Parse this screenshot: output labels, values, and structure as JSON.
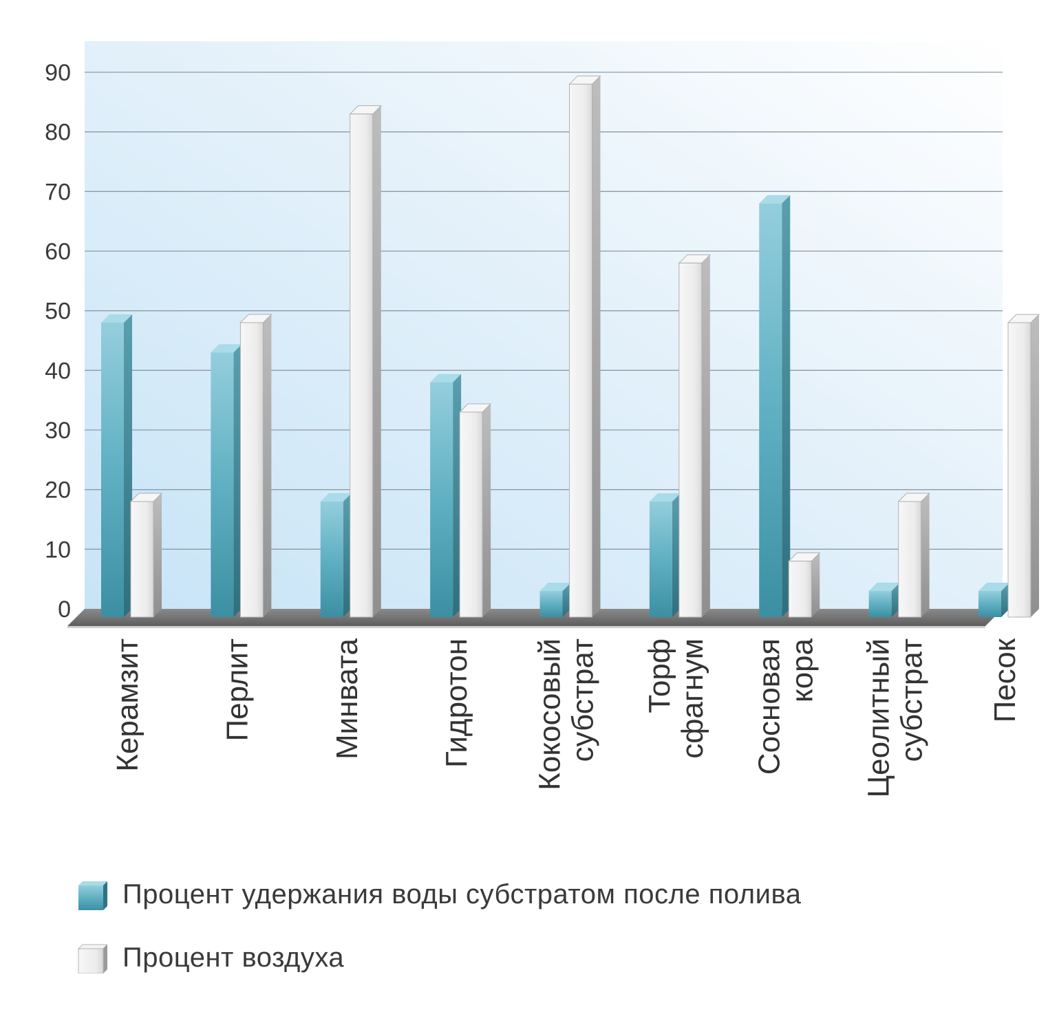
{
  "chart_data": {
    "type": "bar",
    "title": "",
    "xlabel": "",
    "ylabel": "",
    "ylim": [
      0,
      90
    ],
    "yticks": [
      0,
      10,
      20,
      30,
      40,
      50,
      60,
      70,
      80,
      90
    ],
    "grid": true,
    "legend_position": "bottom",
    "categories": [
      [
        "Керамзит"
      ],
      [
        "Перлит"
      ],
      [
        "Минвата"
      ],
      [
        "Гидротон"
      ],
      [
        "Кокосовый",
        "субстрат"
      ],
      [
        "Торф",
        "сфагнум"
      ],
      [
        "Сосновая",
        "кора"
      ],
      [
        "Цеолитный",
        "субстрат"
      ],
      [
        "Песок"
      ]
    ],
    "series": [
      {
        "name": "Процент удержания воды субстратом после полива",
        "color": "#4fa3b6",
        "values": [
          48,
          43,
          18,
          38,
          3,
          18,
          68,
          3,
          3
        ]
      },
      {
        "name": "Процент воздуха",
        "color": "#e6e6e6",
        "values": [
          18,
          48,
          83,
          33,
          88,
          58,
          8,
          18,
          48
        ]
      }
    ]
  }
}
